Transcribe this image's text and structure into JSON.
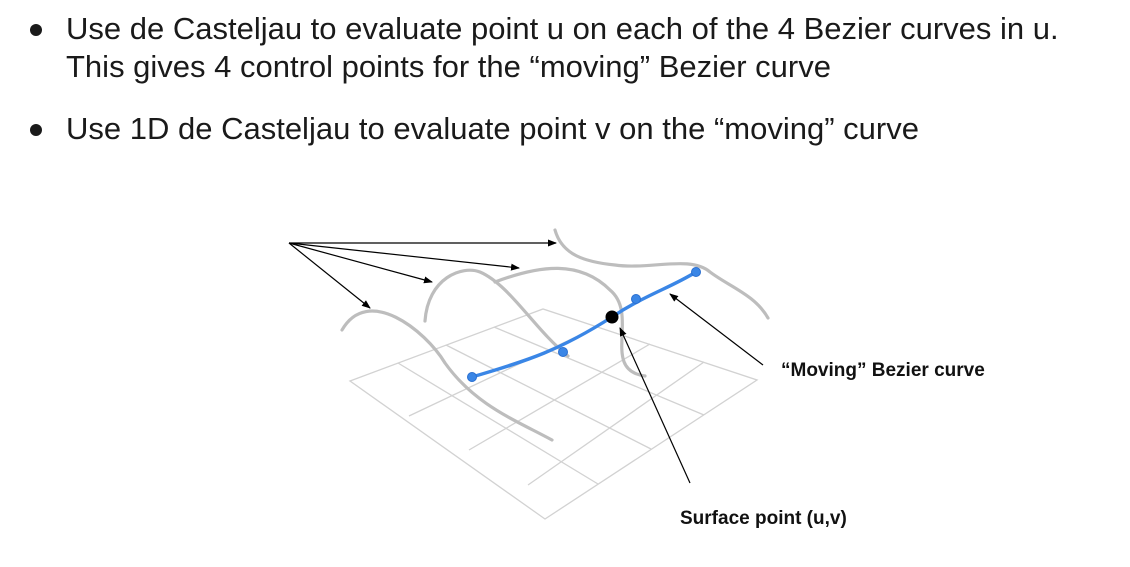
{
  "bullets": [
    {
      "text": "Use de Casteljau to evaluate point u on each of the 4 Bezier curves in u. This gives 4 control points for the “moving” Bezier curve"
    },
    {
      "text": "Use 1D de Casteljau to evaluate point v on the “moving” curve"
    }
  ],
  "figure": {
    "moving_curve_label": "“Moving” Bezier curve",
    "surface_point_label": "Surface point (u,v)"
  },
  "colors": {
    "moving_curve": "#3a86e6",
    "bezier_curves": "#bdbdbd",
    "grid": "#d2d2d2",
    "surface_point": "#000000"
  }
}
